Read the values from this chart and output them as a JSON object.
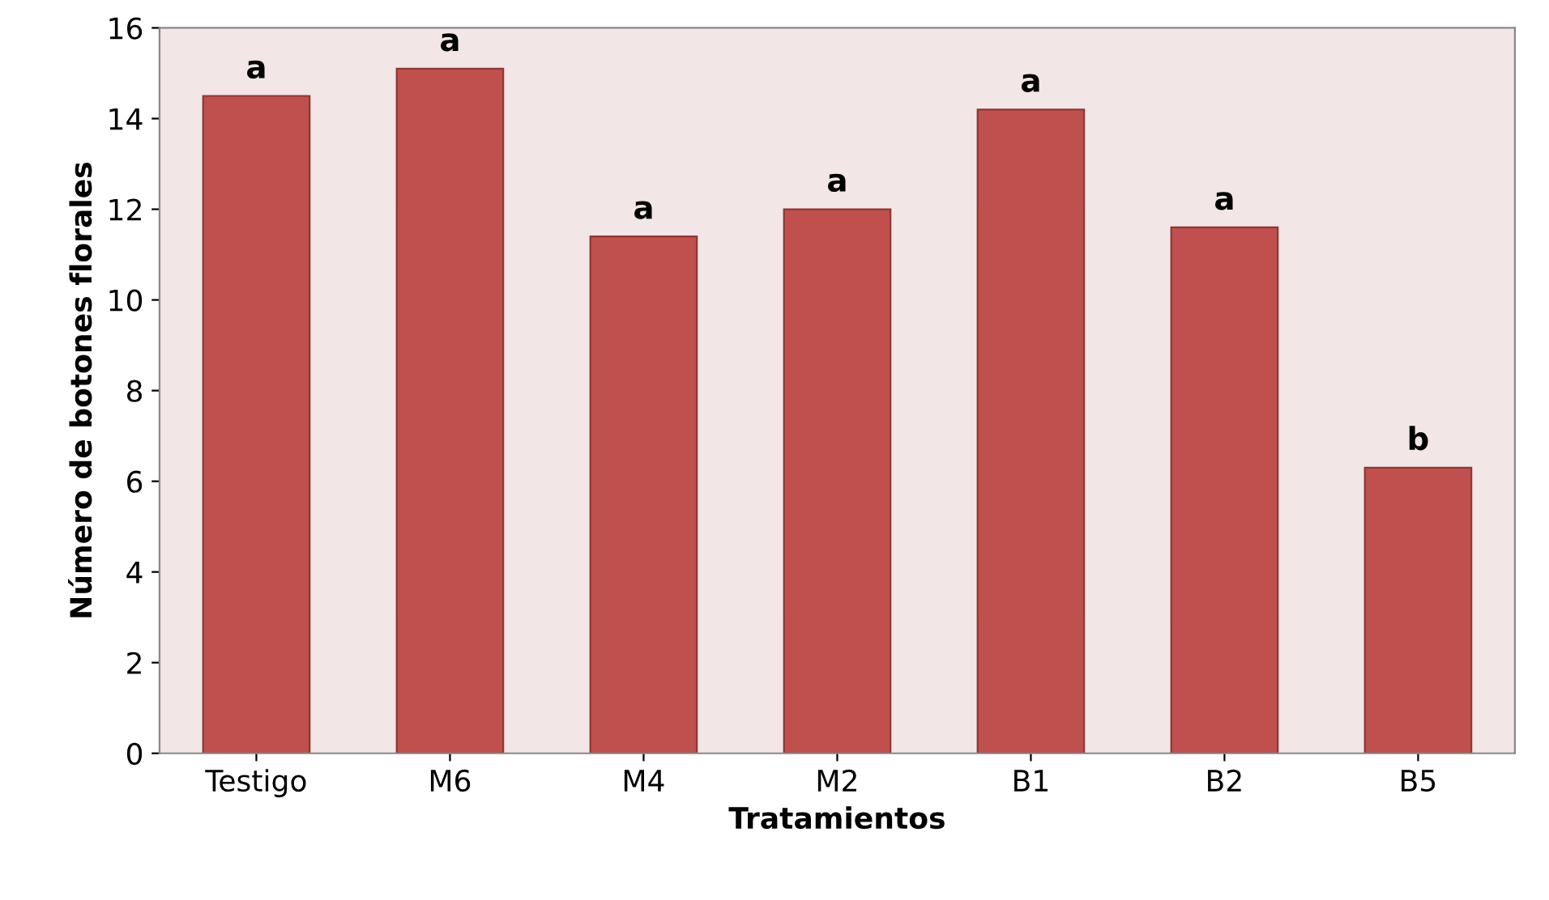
{
  "chart_data": {
    "type": "bar",
    "xlabel": "Tratamientos",
    "ylabel": "Número de botones florales",
    "categories": [
      "Testigo",
      "M6",
      "M4",
      "M2",
      "B1",
      "B2",
      "B5"
    ],
    "values": [
      14.5,
      15.1,
      11.4,
      12.0,
      14.2,
      11.6,
      6.3
    ],
    "color": "#c0504d",
    "ylim": [
      0,
      16
    ],
    "yticks": [
      0,
      2,
      4,
      6,
      8,
      10,
      12,
      14,
      16
    ],
    "grid": false,
    "annotations": [
      {
        "text": "a",
        "x": "Testigo",
        "y": 14.5
      },
      {
        "text": "a",
        "x": "M6",
        "y": 15.1
      },
      {
        "text": "a",
        "x": "M4",
        "y": 11.4
      },
      {
        "text": "a",
        "x": "M2",
        "y": 12.0
      },
      {
        "text": "a",
        "x": "B1",
        "y": 14.2
      },
      {
        "text": "a",
        "x": "B2",
        "y": 11.6
      },
      {
        "text": "b",
        "x": "B5",
        "y": 6.3
      }
    ]
  }
}
